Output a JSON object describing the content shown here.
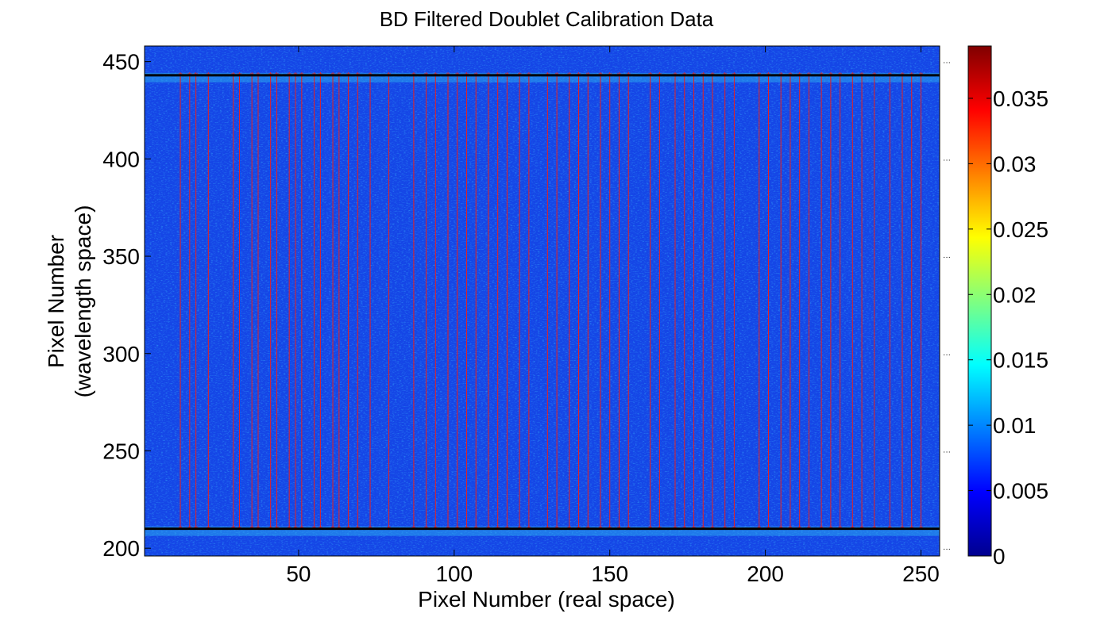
{
  "chart_data": {
    "type": "heatmap",
    "title": "BD Filtered Doublet Calibration Data",
    "xlabel": "Pixel Number (real space)",
    "ylabel": "Pixel Number",
    "ylabel2": "(wavelength space)",
    "xlim": [
      1,
      256
    ],
    "ylim": [
      196,
      458
    ],
    "xticks": [
      50,
      100,
      150,
      200,
      250
    ],
    "yticks": [
      200,
      250,
      300,
      350,
      400,
      450
    ],
    "colorbar": {
      "range": [
        0,
        0.039
      ],
      "ticks": [
        0,
        0.005,
        0.01,
        0.015,
        0.02,
        0.025,
        0.03,
        0.035
      ],
      "tick_labels": [
        "0",
        "0.005",
        "0.01",
        "0.015",
        "0.02",
        "0.025",
        "0.03",
        "0.035"
      ],
      "colormap": "jet"
    },
    "background_color": "#1546e6",
    "top_line_y": 443,
    "bottom_line_y": 210,
    "fiber_line_color": "#e82020",
    "boundary_line_color": "#000000",
    "fiber_x": [
      12,
      15,
      17,
      21,
      29,
      31,
      35,
      37,
      41,
      43,
      47,
      49,
      51,
      55,
      57,
      61,
      63,
      66,
      69,
      73,
      79,
      87,
      91,
      94,
      98,
      101,
      104,
      107,
      111,
      114,
      117,
      121,
      124,
      130,
      133,
      137,
      140,
      143,
      147,
      150,
      153,
      156,
      163,
      166,
      171,
      174,
      177,
      180,
      183,
      187,
      190,
      198,
      201,
      205,
      208,
      211,
      214,
      218,
      221,
      224,
      228,
      231,
      235,
      240,
      244,
      247,
      250
    ]
  }
}
